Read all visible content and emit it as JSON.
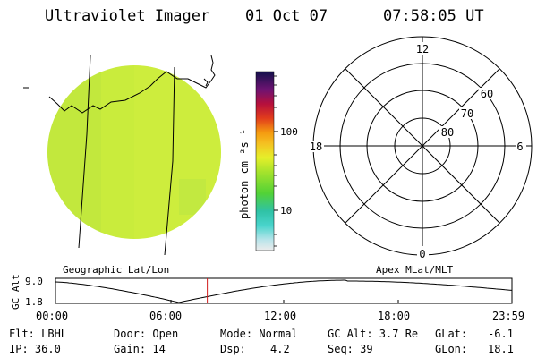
{
  "header": {
    "title": "Ultraviolet Imager",
    "date": "01 Oct 07",
    "time": "07:58:05 UT"
  },
  "colorbar": {
    "unit_label": "photon cm⁻²s⁻¹",
    "ticks": [
      "100",
      "10"
    ]
  },
  "polar_plot": {
    "mlt_labels": [
      "12",
      "18",
      "6",
      "0"
    ],
    "lat_labels": [
      "60",
      "70",
      "80"
    ]
  },
  "map_labels": {
    "left": "Geographic Lat/Lon",
    "right": "Apex MLat/MLT"
  },
  "orbit_plot": {
    "ylabel": "GC Alt",
    "y_ticks": [
      "9.0",
      "1.8"
    ],
    "x_ticks": [
      "00:00",
      "06:00",
      "12:00",
      "18:00",
      "23:59"
    ],
    "current_time_fraction": 0.3326
  },
  "status": {
    "filter": "Flt: LBHL",
    "door": "Door: Open",
    "mode": "Mode: Normal",
    "gc_alt": "GC Alt: 3.7 Re",
    "glat_label": "GLat:",
    "glat_value": "-6.1",
    "ip": "IP: 36.0",
    "gain": "Gain: 14",
    "dsp_label": "Dsp:",
    "dsp_value": "4.2",
    "seq": "Seq: 39",
    "glon_label": "GLon:",
    "glon_value": "18.1"
  },
  "colors": {
    "disk_fill": "#c9ec3c",
    "orbit_marker": "#d11a1a"
  }
}
